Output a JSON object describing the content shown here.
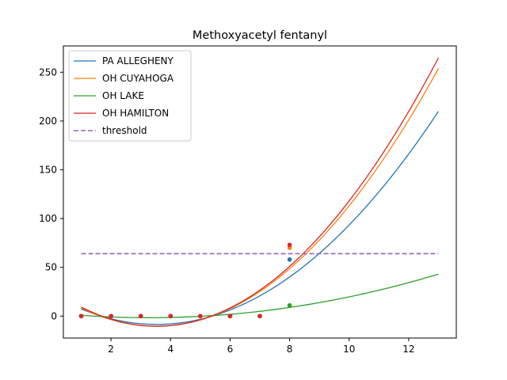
{
  "chart_data": {
    "type": "line",
    "title": "Methoxyacetyl fentanyl",
    "xlabel": "",
    "ylabel": "",
    "xlim": [
      0.4,
      13.6
    ],
    "ylim": [
      -22.5,
      277
    ],
    "xticks": [
      2,
      4,
      6,
      8,
      10,
      12
    ],
    "yticks": [
      0,
      50,
      100,
      150,
      200,
      250
    ],
    "grid": false,
    "legend_position": "top-left",
    "threshold": {
      "name": "threshold",
      "value": 64,
      "x_range": [
        1,
        13
      ],
      "color": "#9467bd",
      "style": "dashed"
    },
    "fit_x_range": [
      1,
      13
    ],
    "series": [
      {
        "name": "PA ALLEGHENY",
        "color": "#1f77b4",
        "points": {
          "x": [
            1,
            2,
            3,
            4,
            5,
            6,
            7,
            8
          ],
          "y": [
            0,
            0,
            0,
            0,
            0,
            0,
            0,
            58
          ]
        },
        "fit_curve": {
          "x": [
            1,
            3.5,
            6,
            8,
            13
          ],
          "y": [
            7,
            -8,
            6,
            40,
            210
          ]
        }
      },
      {
        "name": "OH CUYAHOGA",
        "color": "#ff7f0e",
        "points": {
          "x": [
            1,
            2,
            3,
            4,
            5,
            6,
            7,
            8
          ],
          "y": [
            0,
            0,
            0,
            0,
            0,
            0,
            0,
            70
          ]
        },
        "fit_curve": {
          "x": [
            1,
            3.5,
            6,
            8,
            13
          ],
          "y": [
            8,
            -10,
            8,
            48,
            254
          ]
        }
      },
      {
        "name": "OH LAKE",
        "color": "#2ca02c",
        "points": {
          "x": [
            1,
            2,
            3,
            4,
            5,
            6,
            7,
            8
          ],
          "y": [
            0,
            0,
            0,
            0,
            0,
            0,
            0,
            11
          ]
        },
        "fit_curve": {
          "x": [
            1,
            3.5,
            6,
            8,
            13
          ],
          "y": [
            1,
            -2,
            2,
            9,
            43
          ]
        }
      },
      {
        "name": "OH HAMILTON",
        "color": "#d62728",
        "points": {
          "x": [
            1,
            2,
            3,
            4,
            5,
            6,
            7,
            8
          ],
          "y": [
            0,
            0,
            0,
            0,
            0,
            0,
            0,
            73
          ]
        },
        "fit_curve": {
          "x": [
            1,
            3.5,
            6,
            8,
            13
          ],
          "y": [
            9,
            -10,
            9,
            50,
            265
          ]
        }
      }
    ]
  }
}
